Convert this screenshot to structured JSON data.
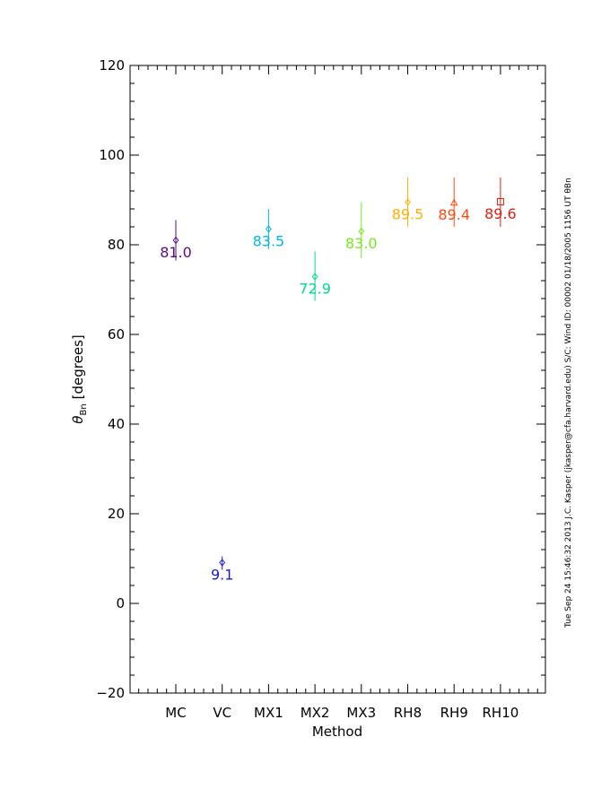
{
  "chart_data": {
    "type": "scatter",
    "xlabel": "Method",
    "ylabel_symbol": "θ",
    "ylabel_subscript": "Bn",
    "ylabel_unit": "[degrees]",
    "ylim": [
      -20,
      120
    ],
    "yticks": [
      -20,
      0,
      20,
      40,
      60,
      80,
      100,
      120
    ],
    "categories": [
      "MC",
      "VC",
      "MX1",
      "MX2",
      "MX3",
      "RH8",
      "RH9",
      "RH10"
    ],
    "points": [
      {
        "method": "MC",
        "value": 81.0,
        "err_low": 76.5,
        "err_high": 85.5,
        "label": "81.0",
        "marker": "diamond",
        "color": "#5a0a82"
      },
      {
        "method": "VC",
        "value": 9.1,
        "err_low": 7.5,
        "err_high": 10.5,
        "label": "9.1",
        "marker": "diamond",
        "color": "#1a1ad8"
      },
      {
        "method": "MX1",
        "value": 83.5,
        "err_low": 79.0,
        "err_high": 88.0,
        "label": "83.5",
        "marker": "diamond",
        "color": "#00b8e0"
      },
      {
        "method": "MX2",
        "value": 72.9,
        "err_low": 67.5,
        "err_high": 78.5,
        "label": "72.9",
        "marker": "diamond",
        "color": "#00d890"
      },
      {
        "method": "MX3",
        "value": 83.0,
        "err_low": 77.0,
        "err_high": 89.5,
        "label": "83.0",
        "marker": "diamond",
        "color": "#78e820"
      },
      {
        "method": "RH8",
        "value": 89.5,
        "err_low": 84.0,
        "err_high": 95.0,
        "label": "89.5",
        "marker": "diamond",
        "color": "#ffb000"
      },
      {
        "method": "RH9",
        "value": 89.4,
        "err_low": 84.0,
        "err_high": 95.0,
        "label": "89.4",
        "marker": "triangle",
        "color": "#ff4a10"
      },
      {
        "method": "RH10",
        "value": 89.6,
        "err_low": 84.0,
        "err_high": 95.0,
        "label": "89.6",
        "marker": "square",
        "color": "#e02010"
      }
    ]
  },
  "side_note": "Tue Sep 24 15:46:32 2013  J.C. Kasper (jkasper@cfa.harvard.edu)  S/C: Wind ID: 00002 01/18/2005  1156 UT θBn"
}
